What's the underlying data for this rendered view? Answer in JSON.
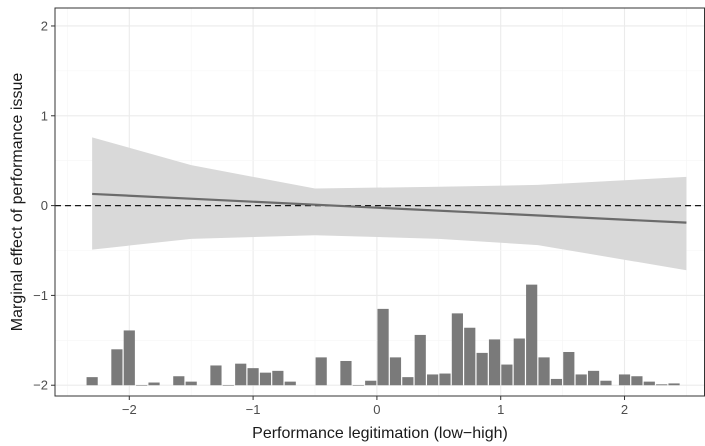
{
  "chart_data": {
    "type": "line",
    "title": "",
    "xlabel": "Performance legitimation (low−high)",
    "ylabel": "Marginal effect of performance issue",
    "xlim": [
      -2.6,
      2.65
    ],
    "ylim": [
      -2.12,
      2.2
    ],
    "x_ticks": [
      -2,
      -1,
      0,
      1,
      2
    ],
    "x_tick_labels": [
      "−2",
      "−1",
      "0",
      "1",
      "2"
    ],
    "y_ticks": [
      -2,
      -1,
      0,
      1,
      2
    ],
    "y_tick_labels": [
      "−2",
      "−1",
      "0",
      "1",
      "2"
    ],
    "grid": true,
    "reference_line": {
      "y": 0,
      "style": "dashed"
    },
    "effect_line": {
      "x": [
        -2.3,
        2.5
      ],
      "y": [
        0.13,
        -0.19
      ]
    },
    "confidence_band": {
      "x": [
        -2.3,
        -1.5,
        -0.5,
        0.5,
        1.3,
        2.5
      ],
      "upper": [
        0.76,
        0.45,
        0.19,
        0.21,
        0.23,
        0.32
      ],
      "lower": [
        -0.49,
        -0.37,
        -0.33,
        -0.37,
        -0.44,
        -0.72
      ]
    },
    "histogram": {
      "baseline": -2.0,
      "bin_width": 0.1,
      "bins": [
        {
          "x": -2.3,
          "top": -1.91
        },
        {
          "x": -2.1,
          "top": -1.6
        },
        {
          "x": -2.0,
          "top": -1.39
        },
        {
          "x": -1.9,
          "top": -2.0
        },
        {
          "x": -1.8,
          "top": -1.97
        },
        {
          "x": -1.6,
          "top": -1.9
        },
        {
          "x": -1.5,
          "top": -1.96
        },
        {
          "x": -1.3,
          "top": -1.78
        },
        {
          "x": -1.2,
          "top": -2.0
        },
        {
          "x": -1.1,
          "top": -1.76
        },
        {
          "x": -1.0,
          "top": -1.81
        },
        {
          "x": -0.9,
          "top": -1.86
        },
        {
          "x": -0.8,
          "top": -1.84
        },
        {
          "x": -0.7,
          "top": -1.96
        },
        {
          "x": -0.45,
          "top": -1.69
        },
        {
          "x": -0.25,
          "top": -1.73
        },
        {
          "x": -0.15,
          "top": -2.0
        },
        {
          "x": -0.05,
          "top": -1.95
        },
        {
          "x": 0.05,
          "top": -1.15
        },
        {
          "x": 0.15,
          "top": -1.69
        },
        {
          "x": 0.25,
          "top": -1.91
        },
        {
          "x": 0.35,
          "top": -1.44
        },
        {
          "x": 0.45,
          "top": -1.88
        },
        {
          "x": 0.55,
          "top": -1.87
        },
        {
          "x": 0.65,
          "top": -1.2
        },
        {
          "x": 0.75,
          "top": -1.36
        },
        {
          "x": 0.85,
          "top": -1.64
        },
        {
          "x": 0.95,
          "top": -1.49
        },
        {
          "x": 1.05,
          "top": -1.77
        },
        {
          "x": 1.15,
          "top": -1.48
        },
        {
          "x": 1.25,
          "top": -0.88
        },
        {
          "x": 1.35,
          "top": -1.69
        },
        {
          "x": 1.45,
          "top": -1.93
        },
        {
          "x": 1.55,
          "top": -1.63
        },
        {
          "x": 1.65,
          "top": -1.88
        },
        {
          "x": 1.75,
          "top": -1.84
        },
        {
          "x": 1.85,
          "top": -1.95
        },
        {
          "x": 2.0,
          "top": -1.88
        },
        {
          "x": 2.1,
          "top": -1.9
        },
        {
          "x": 2.2,
          "top": -1.96
        },
        {
          "x": 2.3,
          "top": -1.99
        },
        {
          "x": 2.4,
          "top": -1.98
        }
      ]
    }
  },
  "colors": {
    "panel_border": "#333333",
    "grid_major": "#ebebeb",
    "grid_minor": "#f5f5f5",
    "band": "#d9d9d9",
    "effect_line": "#6b6b6b",
    "histogram_bar": "#7a7a7a",
    "reference_line": "#1a1a1a",
    "tick_mark": "#333333"
  }
}
